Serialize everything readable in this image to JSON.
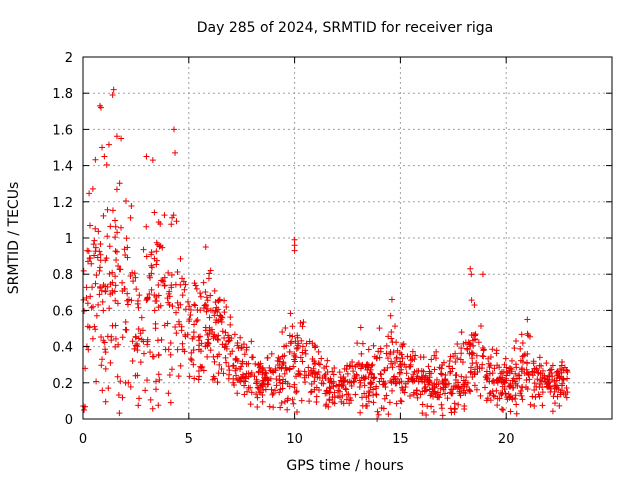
{
  "chart_data": {
    "type": "scatter",
    "title": "Day 285 of 2024, SRMTID for receiver riga",
    "xlabel": "GPS time / hours",
    "ylabel": "SRMTID / TECUs",
    "xlim": [
      0,
      25
    ],
    "ylim": [
      0,
      2
    ],
    "xticks": [
      "0",
      "5",
      "10",
      "15",
      "20"
    ],
    "yticks": [
      "0",
      "0.2",
      "0.4",
      "0.6",
      "0.8",
      "1",
      "1.2",
      "1.4",
      "1.6",
      "1.8",
      "2"
    ],
    "grid": true,
    "marker": "+",
    "color": "#ee0000",
    "envelope": {
      "note": "dense scatter of ~1400 points; per-hour central level and spread read from the figure",
      "hours": [
        0,
        0.5,
        1,
        1.5,
        2,
        2.5,
        3,
        3.5,
        4,
        4.5,
        5,
        5.5,
        6,
        6.5,
        7,
        7.5,
        8,
        8.5,
        9,
        9.5,
        10,
        10.5,
        11,
        11.5,
        12,
        12.5,
        13,
        13.5,
        14,
        14.5,
        15,
        15.5,
        16,
        16.5,
        17,
        17.5,
        18,
        18.5,
        19,
        19.5,
        20,
        20.5,
        21,
        21.5,
        22,
        22.5,
        23
      ],
      "center": [
        0.55,
        0.72,
        0.8,
        0.75,
        0.62,
        0.55,
        0.6,
        0.58,
        0.62,
        0.6,
        0.45,
        0.48,
        0.5,
        0.45,
        0.32,
        0.28,
        0.24,
        0.22,
        0.22,
        0.27,
        0.33,
        0.3,
        0.27,
        0.19,
        0.17,
        0.2,
        0.24,
        0.25,
        0.27,
        0.3,
        0.26,
        0.24,
        0.21,
        0.2,
        0.18,
        0.24,
        0.27,
        0.33,
        0.26,
        0.22,
        0.2,
        0.22,
        0.3,
        0.24,
        0.2,
        0.2,
        0.22
      ],
      "spread": [
        0.35,
        0.4,
        0.45,
        0.42,
        0.35,
        0.32,
        0.35,
        0.3,
        0.35,
        0.3,
        0.18,
        0.18,
        0.18,
        0.16,
        0.12,
        0.1,
        0.1,
        0.1,
        0.1,
        0.12,
        0.18,
        0.14,
        0.11,
        0.08,
        0.07,
        0.08,
        0.12,
        0.12,
        0.15,
        0.15,
        0.11,
        0.1,
        0.09,
        0.09,
        0.1,
        0.12,
        0.15,
        0.18,
        0.12,
        0.09,
        0.08,
        0.1,
        0.14,
        0.11,
        0.08,
        0.08,
        0.08
      ]
    },
    "notable_points": [
      {
        "x": 0.05,
        "y": 0.05
      },
      {
        "x": 0.1,
        "y": 0.28
      },
      {
        "x": 0.2,
        "y": 0.93
      },
      {
        "x": 0.8,
        "y": 1.73
      },
      {
        "x": 0.85,
        "y": 1.72
      },
      {
        "x": 0.9,
        "y": 1.5
      },
      {
        "x": 1.4,
        "y": 1.79
      },
      {
        "x": 1.45,
        "y": 1.82
      },
      {
        "x": 1.8,
        "y": 1.55
      },
      {
        "x": 3.0,
        "y": 1.45
      },
      {
        "x": 3.3,
        "y": 1.43
      },
      {
        "x": 4.3,
        "y": 1.6
      },
      {
        "x": 4.35,
        "y": 1.47
      },
      {
        "x": 5.8,
        "y": 0.95
      },
      {
        "x": 10.0,
        "y": 0.99
      },
      {
        "x": 10.0,
        "y": 0.96
      },
      {
        "x": 10.0,
        "y": 0.93
      },
      {
        "x": 13.9,
        "y": 0.0
      },
      {
        "x": 14.6,
        "y": 0.66
      },
      {
        "x": 16.6,
        "y": 0.35
      },
      {
        "x": 17.0,
        "y": 0.02
      },
      {
        "x": 18.3,
        "y": 0.83
      },
      {
        "x": 18.35,
        "y": 0.8
      },
      {
        "x": 18.9,
        "y": 0.8
      },
      {
        "x": 18.5,
        "y": 0.63
      },
      {
        "x": 21.0,
        "y": 0.55
      },
      {
        "x": 22.9,
        "y": 0.26
      }
    ]
  }
}
